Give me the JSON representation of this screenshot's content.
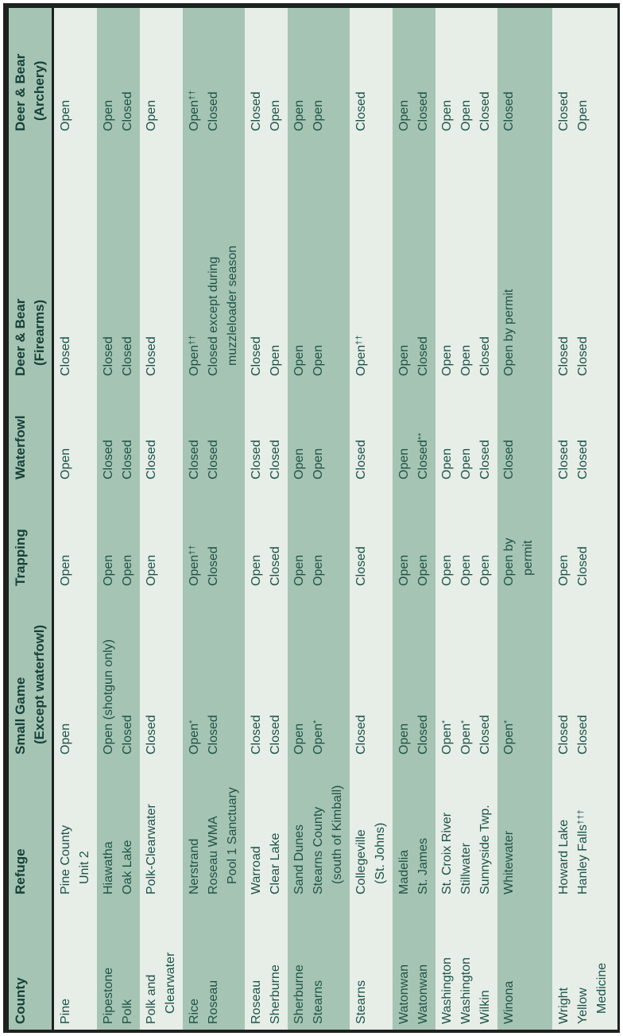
{
  "colors": {
    "page_bg": "#ffffff",
    "border": "#1d211f",
    "header_bg": "#a6c4b3",
    "band_dark": "#a6c4b3",
    "band_light": "#e6eee7",
    "text_header": "#15413a",
    "text_body": "#1d5348"
  },
  "table": {
    "headers": [
      {
        "key": "county",
        "label": "County"
      },
      {
        "key": "refuge",
        "label": "Refuge"
      },
      {
        "key": "small_game",
        "label": "Small Game\n(Except waterfowl)"
      },
      {
        "key": "trapping",
        "label": "Trapping"
      },
      {
        "key": "waterfowl",
        "label": "Waterfowl"
      },
      {
        "key": "firearms",
        "label": "Deer & Bear\n(Firearms)"
      },
      {
        "key": "archery",
        "label": "Deer & Bear\n(Archery)"
      }
    ],
    "groups": [
      {
        "shade": "light",
        "rows": [
          {
            "county": "Pine",
            "refuge": "Pine County\nUnit 2",
            "small_game": "Open",
            "trapping": "Open",
            "waterfowl": "Open",
            "firearms": "Closed",
            "archery": "Open"
          }
        ]
      },
      {
        "shade": "dark",
        "rows": [
          {
            "county": "Pipestone",
            "refuge": "Hiawatha",
            "small_game": "Open (shotgun only)",
            "trapping": "Open",
            "waterfowl": "Closed",
            "firearms": "Closed",
            "archery": "Open"
          },
          {
            "county": "Polk",
            "refuge": "Oak Lake",
            "small_game": "Closed",
            "trapping": "Open",
            "waterfowl": "Closed",
            "firearms": "Closed",
            "archery": "Closed"
          }
        ]
      },
      {
        "shade": "light",
        "rows": [
          {
            "county": "Polk and\nClearwater",
            "refuge": "Polk-Clearwater",
            "small_game": "Closed",
            "trapping": "Open",
            "waterfowl": "Closed",
            "firearms": "Closed",
            "archery": "Open"
          }
        ]
      },
      {
        "shade": "dark",
        "rows": [
          {
            "county": "Rice",
            "refuge": "Nerstrand",
            "small_game": "Open*",
            "trapping": "Open††",
            "waterfowl": "Closed",
            "firearms": "Open††",
            "archery": "Open††"
          },
          {
            "county": "Roseau",
            "refuge": "Roseau WMA\nPool 1 Sanctuary",
            "small_game": "Closed",
            "trapping": "Closed",
            "waterfowl": "Closed",
            "firearms": "Closed except during\nmuzzleloader season",
            "archery": "Closed"
          }
        ]
      },
      {
        "shade": "light",
        "rows": [
          {
            "county": "Roseau",
            "refuge": "Warroad",
            "small_game": "Closed",
            "trapping": "Open",
            "waterfowl": "Closed",
            "firearms": "Closed",
            "archery": "Closed"
          },
          {
            "county": "Sherburne",
            "refuge": "Clear Lake",
            "small_game": "Closed",
            "trapping": "Closed",
            "waterfowl": "Closed",
            "firearms": "Open",
            "archery": "Open"
          }
        ]
      },
      {
        "shade": "dark",
        "rows": [
          {
            "county": "Sherburne",
            "refuge": "Sand Dunes",
            "small_game": "Open",
            "trapping": "Open",
            "waterfowl": "Open",
            "firearms": "Open",
            "archery": "Open"
          },
          {
            "county": "Stearns",
            "refuge": "Stearns County\n(south of Kimball)",
            "small_game": "Open*",
            "trapping": "Open",
            "waterfowl": "Open",
            "firearms": "Open",
            "archery": "Open"
          }
        ]
      },
      {
        "shade": "light",
        "rows": [
          {
            "county": "Stearns",
            "refuge": "Collegeville\n(St. Johns)",
            "small_game": "Closed",
            "trapping": "Closed",
            "waterfowl": "Closed",
            "firearms": "Open††",
            "archery": "Closed"
          }
        ]
      },
      {
        "shade": "dark",
        "rows": [
          {
            "county": "Watonwan",
            "refuge": "Madelia",
            "small_game": "Open",
            "trapping": "Open",
            "waterfowl": "Open",
            "firearms": "Open",
            "archery": "Open"
          },
          {
            "county": "Watonwan",
            "refuge": "St. James",
            "small_game": "Closed",
            "trapping": "Open",
            "waterfowl": "Closed**",
            "firearms": "Closed",
            "archery": "Closed"
          }
        ]
      },
      {
        "shade": "light",
        "rows": [
          {
            "county": "Washington",
            "refuge": "St. Croix River",
            "small_game": "Open*",
            "trapping": "Open",
            "waterfowl": "Open",
            "firearms": "Open",
            "archery": "Open"
          },
          {
            "county": "Washington",
            "refuge": "Stillwater",
            "small_game": "Open*",
            "trapping": "Open",
            "waterfowl": "Open",
            "firearms": "Open",
            "archery": "Open"
          },
          {
            "county": "Wilkin",
            "refuge": "Sunnyside Twp.",
            "small_game": "Closed",
            "trapping": "Open",
            "waterfowl": "Closed",
            "firearms": "Closed",
            "archery": "Closed"
          }
        ]
      },
      {
        "shade": "dark",
        "tall": true,
        "rows": [
          {
            "county": "Winona",
            "refuge": "Whitewater",
            "small_game": "Open*",
            "trapping": "Open by\npermit",
            "waterfowl": "Closed",
            "firearms": "Open by permit",
            "archery": "Closed"
          }
        ]
      },
      {
        "shade": "light",
        "rows": [
          {
            "county": "Wright",
            "refuge": "Howard Lake",
            "small_game": "Closed",
            "trapping": "Open",
            "waterfowl": "Closed",
            "firearms": "Closed",
            "archery": "Closed"
          },
          {
            "county": "Yellow\nMedicine",
            "refuge": "Hanley Falls†††",
            "small_game": "Closed",
            "trapping": "Closed",
            "waterfowl": "Closed",
            "firearms": "Closed",
            "archery": "Open"
          }
        ]
      }
    ]
  }
}
